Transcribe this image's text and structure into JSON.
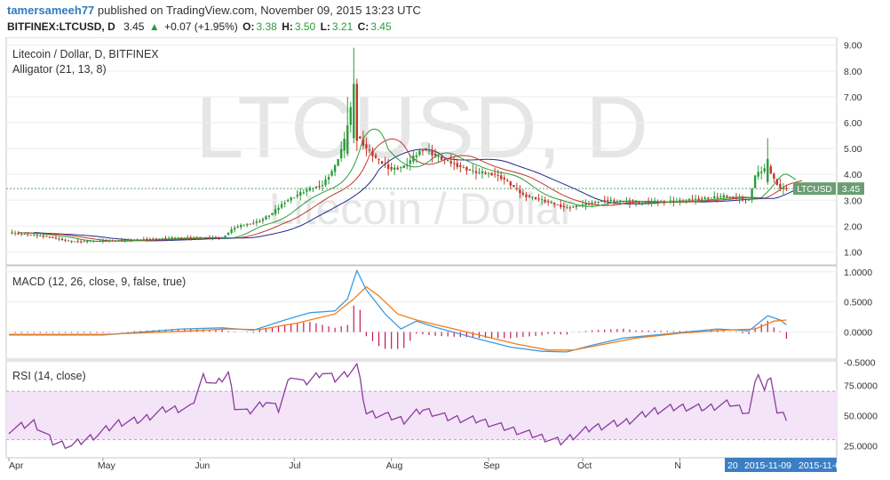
{
  "header": {
    "author": "tamersameeh77",
    "published_text": "published on TradingView.com, November 09, 2015 13:23 UTC",
    "symbol_line": "BITFINEX:LTCUSD, D",
    "last_price": "3.45",
    "change_arrow": "▲",
    "change_text": "+0.07 (+1.95%)",
    "o_label": "O:",
    "o_value": "3.38",
    "h_label": "H:",
    "h_value": "3.50",
    "l_label": "L:",
    "l_value": "3.21",
    "c_label": "C:",
    "c_value": "3.45"
  },
  "colors": {
    "up": "#2a9d3a",
    "down": "#c0392b",
    "bg_watermark": "#e6e6e6",
    "jaw": "#1f2a8a",
    "teeth": "#c0392b",
    "lips": "#2a9d3a",
    "macd": "#3c9be0",
    "signal": "#f07d1a",
    "hist": "#c2185b",
    "rsi": "#8e3a9e",
    "rsi_band": "#f3e4f8",
    "price_tag": "#6a9e72",
    "date_tag": "#3a7fc4"
  },
  "chart_data": [
    {
      "type": "candlestick",
      "title": "Litecoin / Dollar, D, BITFINEX",
      "indicator": "Alligator (21, 13, 8)",
      "watermark_main": "LTCUSD, D",
      "watermark_sub": "Litecoin / Dollar",
      "last_price_tag": "LTCUSD",
      "last_price_value": "3.45",
      "y_ticks": [
        "1.00",
        "2.00",
        "3.00",
        "4.00",
        "5.00",
        "6.00",
        "7.00",
        "8.00",
        "9.00"
      ],
      "ylim": [
        0.5,
        9.3
      ],
      "grid": true,
      "months": [
        "Apr",
        "May",
        "Jun",
        "Jul",
        "Aug",
        "Sep",
        "Oct",
        "N"
      ],
      "date_labels": [
        "20",
        "2015-11-09",
        "2015-11-0"
      ],
      "anchors": [
        [
          0,
          1.75
        ],
        [
          12,
          1.6
        ],
        [
          20,
          1.4
        ],
        [
          35,
          1.45
        ],
        [
          55,
          1.55
        ],
        [
          68,
          1.55
        ],
        [
          72,
          1.95
        ],
        [
          80,
          2.2
        ],
        [
          84,
          2.5
        ],
        [
          88,
          2.95
        ],
        [
          95,
          3.4
        ],
        [
          100,
          3.6
        ],
        [
          104,
          4.3
        ],
        [
          107,
          5.3
        ],
        [
          110,
          7.2
        ],
        [
          111,
          5.5
        ],
        [
          114,
          5.0
        ],
        [
          118,
          4.5
        ],
        [
          122,
          4.2
        ],
        [
          126,
          4.3
        ],
        [
          132,
          5.0
        ],
        [
          138,
          4.6
        ],
        [
          148,
          4.1
        ],
        [
          155,
          4.0
        ],
        [
          158,
          3.8
        ],
        [
          164,
          3.2
        ],
        [
          170,
          3.0
        ],
        [
          178,
          2.7
        ],
        [
          184,
          2.85
        ],
        [
          190,
          3.0
        ],
        [
          200,
          2.9
        ],
        [
          214,
          2.98
        ],
        [
          228,
          3.15
        ],
        [
          236,
          3.0
        ],
        [
          238,
          3.95
        ],
        [
          242,
          4.3
        ],
        [
          244,
          3.8
        ],
        [
          246,
          3.45
        ],
        [
          248,
          3.45
        ]
      ],
      "special_candles": [
        {
          "day": 110,
          "open": 5.4,
          "close": 7.5,
          "high": 8.9,
          "low": 5.2
        },
        {
          "day": 111,
          "open": 7.5,
          "close": 5.3,
          "high": 7.7,
          "low": 4.9
        },
        {
          "day": 108,
          "open": 4.8,
          "close": 5.9,
          "high": 7.0,
          "low": 4.7
        },
        {
          "day": 242,
          "open": 3.7,
          "close": 4.6,
          "high": 5.4,
          "low": 3.6
        }
      ]
    },
    {
      "type": "line",
      "title": "MACD (12, 26, close, 9, false, true)",
      "y_ticks": [
        "-0.5000",
        "0.0000",
        "0.5000",
        "1.0000"
      ],
      "ylim": [
        -0.45,
        1.1
      ],
      "series": [
        {
          "role": "macd",
          "points": [
            [
              0,
              -0.05
            ],
            [
              30,
              -0.05
            ],
            [
              55,
              0.05
            ],
            [
              68,
              0.07
            ],
            [
              78,
              0.03
            ],
            [
              88,
              0.2
            ],
            [
              96,
              0.32
            ],
            [
              104,
              0.35
            ],
            [
              108,
              0.55
            ],
            [
              111,
              1.02
            ],
            [
              114,
              0.7
            ],
            [
              120,
              0.3
            ],
            [
              125,
              0.05
            ],
            [
              130,
              0.18
            ],
            [
              136,
              0.08
            ],
            [
              150,
              -0.12
            ],
            [
              160,
              -0.25
            ],
            [
              170,
              -0.32
            ],
            [
              178,
              -0.33
            ],
            [
              186,
              -0.22
            ],
            [
              196,
              -0.1
            ],
            [
              212,
              -0.02
            ],
            [
              226,
              0.05
            ],
            [
              236,
              0.02
            ],
            [
              242,
              0.27
            ],
            [
              246,
              0.2
            ],
            [
              248,
              0.12
            ]
          ]
        },
        {
          "role": "signal",
          "points": [
            [
              0,
              -0.04
            ],
            [
              30,
              -0.04
            ],
            [
              55,
              0.01
            ],
            [
              70,
              0.05
            ],
            [
              80,
              0.04
            ],
            [
              92,
              0.15
            ],
            [
              104,
              0.3
            ],
            [
              110,
              0.55
            ],
            [
              114,
              0.75
            ],
            [
              118,
              0.6
            ],
            [
              124,
              0.3
            ],
            [
              130,
              0.2
            ],
            [
              138,
              0.1
            ],
            [
              150,
              -0.05
            ],
            [
              162,
              -0.2
            ],
            [
              172,
              -0.3
            ],
            [
              180,
              -0.3
            ],
            [
              190,
              -0.2
            ],
            [
              200,
              -0.1
            ],
            [
              214,
              -0.02
            ],
            [
              228,
              0.03
            ],
            [
              238,
              0.05
            ],
            [
              244,
              0.18
            ],
            [
              248,
              0.2
            ]
          ]
        }
      ]
    },
    {
      "type": "line",
      "title": "RSI (14, close)",
      "y_ticks": [
        "25.0000",
        "50.0000",
        "75.0000"
      ],
      "ylim": [
        15,
        95
      ],
      "band": [
        30,
        70
      ],
      "series": [
        {
          "role": "rsi",
          "points": [
            [
              0,
              38
            ],
            [
              8,
              44
            ],
            [
              14,
              28
            ],
            [
              20,
              25
            ],
            [
              28,
              34
            ],
            [
              35,
              44
            ],
            [
              42,
              46
            ],
            [
              50,
              55
            ],
            [
              58,
              56
            ],
            [
              62,
              82
            ],
            [
              66,
              75
            ],
            [
              70,
              85
            ],
            [
              72,
              58
            ],
            [
              76,
              52
            ],
            [
              82,
              62
            ],
            [
              86,
              55
            ],
            [
              90,
              84
            ],
            [
              94,
              76
            ],
            [
              100,
              86
            ],
            [
              104,
              80
            ],
            [
              108,
              85
            ],
            [
              111,
              91
            ],
            [
              114,
              52
            ],
            [
              120,
              50
            ],
            [
              126,
              46
            ],
            [
              132,
              55
            ],
            [
              140,
              48
            ],
            [
              150,
              46
            ],
            [
              158,
              40
            ],
            [
              164,
              36
            ],
            [
              170,
              32
            ],
            [
              176,
              28
            ],
            [
              180,
              33
            ],
            [
              186,
              40
            ],
            [
              196,
              44
            ],
            [
              206,
              54
            ],
            [
              214,
              57
            ],
            [
              222,
              56
            ],
            [
              230,
              60
            ],
            [
              236,
              52
            ],
            [
              239,
              86
            ],
            [
              241,
              70
            ],
            [
              243,
              84
            ],
            [
              245,
              52
            ],
            [
              248,
              48
            ]
          ]
        }
      ]
    }
  ]
}
